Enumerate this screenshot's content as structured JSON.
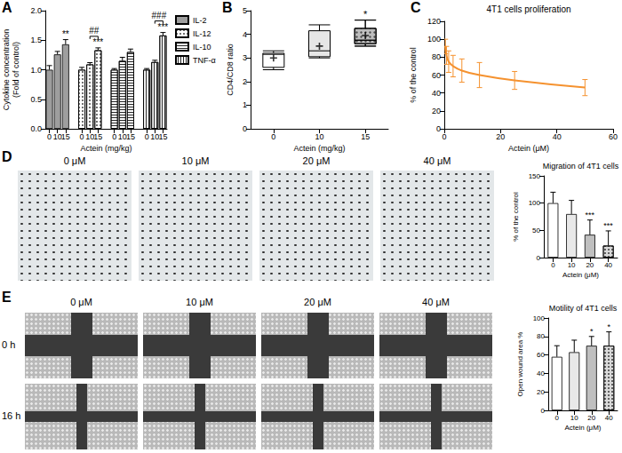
{
  "chart_data": [
    {
      "panel": "A",
      "type": "bar",
      "x_label": "Actein (mg/kg)",
      "y_label": "Cytokine concentration\n(Fold of control)",
      "categories": [
        "0",
        "10",
        "15",
        null,
        "0",
        "10",
        "15",
        null,
        "0",
        "10",
        "15",
        null,
        "0",
        "10",
        "15"
      ],
      "series": [
        {
          "name": "IL-2",
          "color": "#9e9e9e",
          "values": [
            1.0,
            1.26,
            1.43,
            null,
            null,
            null,
            null,
            null,
            null,
            null,
            null,
            null,
            null,
            null,
            null
          ],
          "errors": [
            0.07,
            0.05,
            0.08,
            null,
            null,
            null,
            null,
            null,
            null,
            null,
            null,
            null,
            null,
            null,
            null
          ]
        },
        {
          "name": "IL-12",
          "color": "#ffffff",
          "values": [
            null,
            null,
            null,
            null,
            1.0,
            1.09,
            1.33,
            null,
            null,
            null,
            null,
            null,
            null,
            null,
            null
          ],
          "errors": [
            null,
            null,
            null,
            null,
            0.04,
            0.03,
            0.04,
            null,
            null,
            null,
            null,
            null,
            null,
            null,
            null
          ]
        },
        {
          "name": "IL-10",
          "color": "#ffffff",
          "values": [
            null,
            null,
            null,
            null,
            null,
            null,
            null,
            null,
            1.0,
            1.15,
            1.3,
            null,
            null,
            null,
            null
          ],
          "errors": [
            null,
            null,
            null,
            null,
            null,
            null,
            null,
            null,
            0.02,
            0.06,
            0.05,
            null,
            null,
            null,
            null
          ]
        },
        {
          "name": "TNF-α",
          "color": "#ffffff",
          "values": [
            null,
            null,
            null,
            null,
            null,
            null,
            null,
            null,
            null,
            null,
            null,
            null,
            1.0,
            1.13,
            1.58
          ],
          "errors": [
            null,
            null,
            null,
            null,
            null,
            null,
            null,
            null,
            null,
            null,
            null,
            null,
            0.02,
            0.03,
            0.05
          ]
        }
      ],
      "ylim": [
        0,
        2
      ],
      "yticks": [
        {
          "value": 0,
          "label": "0.0"
        },
        {
          "value": 0.5,
          "label": "0.5"
        },
        {
          "value": 1,
          "label": "1.0"
        },
        {
          "value": 1.5,
          "label": "1.5"
        },
        {
          "value": 2,
          "label": "2.0"
        }
      ],
      "grid": false,
      "legend": "right",
      "annotations": [
        {
          "text": "**",
          "index": 2
        },
        {
          "text": "***",
          "index": 6
        },
        {
          "text": "##",
          "from": 5,
          "to": 6
        },
        {
          "text": "***",
          "index": 14
        },
        {
          "text": "###",
          "from": 13,
          "to": 14
        }
      ]
    },
    {
      "panel": "B",
      "type": "box",
      "x_label": "Actein (mg/kg)",
      "y_label": "CD4/CD8 ratio",
      "categories": [
        "0",
        "10",
        "15"
      ],
      "values": [
        [
          2.5,
          2.6,
          3.15,
          3.2,
          3.3
        ],
        [
          3.0,
          3.05,
          3.3,
          4.15,
          4.4
        ],
        [
          3.5,
          3.6,
          3.75,
          4.25,
          4.6
        ]
      ],
      "means": [
        3.0,
        3.5,
        3.95
      ],
      "colors": [
        "#ffffff",
        "#e6e6e6",
        "#bdbdbd"
      ],
      "ylim": [
        0,
        5
      ],
      "yticks": [
        0,
        1,
        2,
        3,
        4,
        5
      ],
      "grid": false,
      "annotations": [
        {
          "text": "*",
          "index": 2
        }
      ]
    },
    {
      "panel": "C",
      "type": "line",
      "title": "4T1 cells proliferation",
      "x_label": "Actein (μM)",
      "y_label": "% of the control",
      "x": [
        0.39,
        0.78,
        1.56,
        3.125,
        6.25,
        12.5,
        25,
        50
      ],
      "values": [
        92,
        82,
        75,
        70,
        65,
        60,
        54,
        46
      ],
      "errors": [
        8,
        10,
        12,
        12,
        13,
        14,
        10,
        9
      ],
      "color": "#f5922f",
      "marker": "none",
      "xlim": [
        0,
        60
      ],
      "xticks": [
        0,
        20,
        40,
        60
      ],
      "ylim": [
        0,
        120
      ],
      "yticks": [
        0,
        20,
        40,
        60,
        80,
        100,
        120
      ],
      "grid": false
    },
    {
      "panel": "D",
      "type": "bar",
      "title": "Migration of 4T1 cells",
      "x_label": "Actein (μM)",
      "y_label": "% of the control",
      "categories": [
        "0",
        "10",
        "20",
        "40"
      ],
      "values": [
        100,
        80,
        42,
        22
      ],
      "errors": [
        20,
        25,
        27,
        27
      ],
      "colors": [
        "#ffffff",
        "#e8e8e8",
        "#bfbfbf",
        "#d9d9d9"
      ],
      "ylim": [
        0,
        150
      ],
      "yticks": [
        0,
        50,
        100,
        150
      ],
      "grid": false,
      "annotations": [
        {
          "text": "***",
          "index": 2
        },
        {
          "text": "***",
          "index": 3
        }
      ]
    },
    {
      "panel": "E",
      "type": "bar",
      "title": "Motility of 4T1 cells",
      "x_label": "Actein (μM)",
      "y_label": "Open wound area %",
      "categories": [
        "0",
        "10",
        "20",
        "40"
      ],
      "values": [
        58,
        63,
        70,
        70
      ],
      "errors": [
        12,
        13,
        10,
        15
      ],
      "colors": [
        "#ffffff",
        "#e8e8e8",
        "#bfbfbf",
        "#d9d9d9"
      ],
      "ylim": [
        0,
        100
      ],
      "yticks": [
        0,
        20,
        40,
        60,
        80,
        100
      ],
      "grid": false,
      "annotations": [
        {
          "text": "*",
          "index": 2
        },
        {
          "text": "*",
          "index": 3
        }
      ]
    }
  ],
  "micrographs": [
    {
      "panel": "D",
      "columns": [
        "0 μM",
        "10 μM",
        "20 μM",
        "40 μM"
      ]
    },
    {
      "panel": "E",
      "columns": [
        "0 μM",
        "10 μM",
        "20 μM",
        "40 μM"
      ],
      "rows": [
        "0 h",
        "16 h"
      ]
    }
  ]
}
